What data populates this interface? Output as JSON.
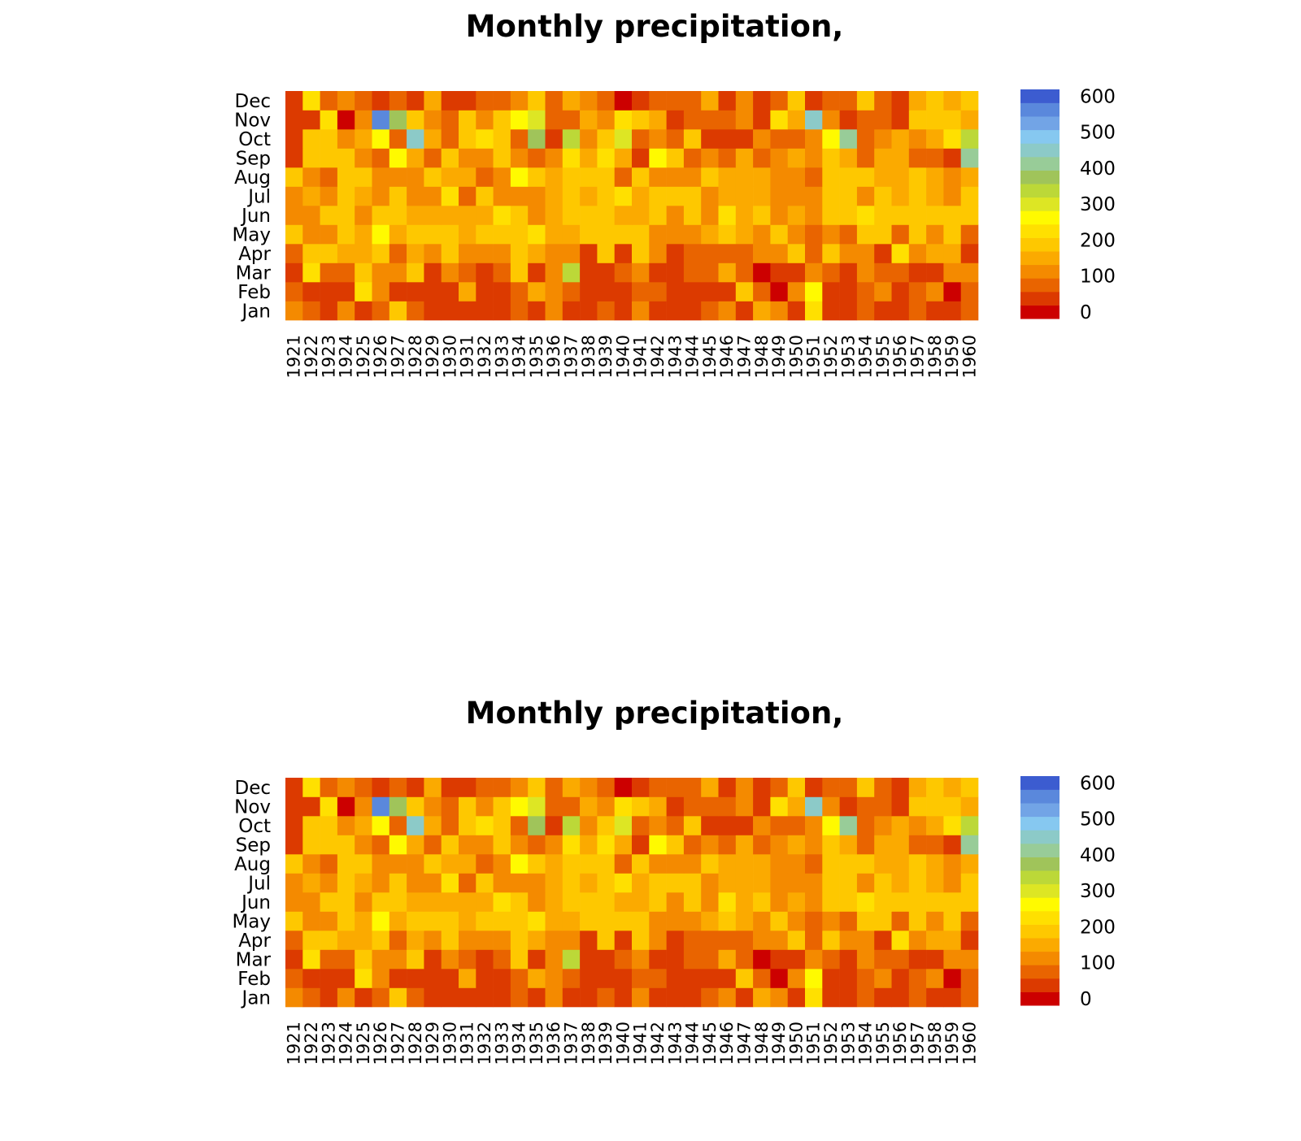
{
  "chart_data": [
    {
      "type": "heatmap",
      "title": "Monthly precipitation,",
      "xlabel": "",
      "ylabel": "",
      "legend": "right",
      "grid": false,
      "x": [
        "1921",
        "1922",
        "1923",
        "1924",
        "1925",
        "1926",
        "1927",
        "1928",
        "1929",
        "1930",
        "1931",
        "1932",
        "1933",
        "1934",
        "1935",
        "1936",
        "1937",
        "1938",
        "1939",
        "1940",
        "1941",
        "1942",
        "1943",
        "1944",
        "1945",
        "1946",
        "1947",
        "1948",
        "1949",
        "1950",
        "1951",
        "1952",
        "1953",
        "1954",
        "1955",
        "1956",
        "1957",
        "1958",
        "1959",
        "1960"
      ],
      "y": [
        "Jan",
        "Feb",
        "Mar",
        "Apr",
        "May",
        "Jun",
        "Jul",
        "Aug",
        "Sep",
        "Oct",
        "Nov",
        "Dec"
      ],
      "colorbar": {
        "ticks": [
          "0",
          "100",
          "200",
          "300",
          "400",
          "500",
          "600"
        ],
        "range": [
          0,
          600
        ]
      },
      "colors": [
        "#cc0000",
        "#dc3a00",
        "#e96400",
        "#f48a00",
        "#fbaa00",
        "#fec800",
        "#ffe000",
        "#fffa00",
        "#dde624",
        "#bcd838",
        "#a0c45a",
        "#98cc98",
        "#8ccac8",
        "#86c8f0",
        "#72a4e6",
        "#5a88dc",
        "#3c5cd0"
      ],
      "values": [
        [
          120,
          70,
          40,
          120,
          40,
          70,
          190,
          70,
          40,
          40,
          40,
          40,
          40,
          70,
          40,
          120,
          40,
          40,
          70,
          40,
          120,
          40,
          40,
          40,
          70,
          120,
          40,
          140,
          120,
          40,
          240,
          40,
          40,
          70,
          40,
          40,
          70,
          40,
          40,
          70
        ],
        [
          70,
          40,
          40,
          40,
          240,
          120,
          40,
          40,
          40,
          40,
          140,
          40,
          40,
          70,
          140,
          100,
          70,
          40,
          40,
          40,
          70,
          70,
          40,
          40,
          40,
          40,
          190,
          70,
          5,
          120,
          280,
          40,
          40,
          70,
          120,
          40,
          70,
          120,
          5,
          70
        ],
        [
          40,
          240,
          70,
          70,
          190,
          120,
          120,
          170,
          40,
          120,
          70,
          40,
          70,
          200,
          40,
          120,
          320,
          40,
          40,
          70,
          120,
          40,
          40,
          70,
          70,
          140,
          70,
          5,
          40,
          40,
          120,
          70,
          40,
          120,
          70,
          70,
          40,
          40,
          120,
          120
        ],
        [
          70,
          170,
          170,
          140,
          140,
          200,
          70,
          140,
          120,
          170,
          120,
          120,
          120,
          170,
          140,
          120,
          120,
          40,
          190,
          40,
          170,
          120,
          40,
          70,
          70,
          70,
          70,
          120,
          120,
          200,
          70,
          170,
          120,
          120,
          40,
          240,
          120,
          140,
          140,
          40
        ],
        [
          170,
          120,
          120,
          200,
          140,
          280,
          140,
          170,
          200,
          170,
          140,
          170,
          200,
          200,
          240,
          140,
          140,
          170,
          200,
          200,
          200,
          120,
          120,
          120,
          140,
          170,
          140,
          120,
          170,
          120,
          70,
          120,
          70,
          200,
          170,
          70,
          170,
          120,
          170,
          70
        ],
        [
          120,
          120,
          170,
          170,
          120,
          200,
          170,
          140,
          140,
          140,
          140,
          140,
          240,
          170,
          120,
          140,
          200,
          200,
          170,
          140,
          140,
          200,
          120,
          200,
          120,
          240,
          140,
          170,
          120,
          140,
          120,
          170,
          170,
          240,
          170,
          200,
          170,
          170,
          170,
          170
        ],
        [
          120,
          140,
          120,
          170,
          140,
          120,
          170,
          120,
          120,
          240,
          70,
          200,
          120,
          120,
          120,
          140,
          170,
          140,
          200,
          240,
          140,
          170,
          170,
          200,
          120,
          140,
          140,
          140,
          120,
          120,
          120,
          200,
          200,
          120,
          170,
          140,
          200,
          140,
          120,
          170
        ],
        [
          170,
          120,
          70,
          170,
          170,
          120,
          120,
          120,
          170,
          140,
          140,
          70,
          120,
          280,
          200,
          140,
          200,
          170,
          200,
          70,
          170,
          120,
          120,
          120,
          170,
          140,
          140,
          140,
          120,
          120,
          70,
          170,
          200,
          170,
          140,
          140,
          200,
          140,
          120,
          140
        ],
        [
          40,
          200,
          170,
          170,
          120,
          70,
          280,
          140,
          70,
          200,
          120,
          120,
          170,
          120,
          70,
          120,
          240,
          140,
          240,
          140,
          40,
          280,
          170,
          70,
          120,
          70,
          140,
          70,
          120,
          140,
          120,
          200,
          140,
          70,
          140,
          140,
          70,
          70,
          40,
          400
        ],
        [
          40,
          170,
          170,
          120,
          140,
          280,
          70,
          440,
          140,
          70,
          200,
          240,
          200,
          70,
          380,
          40,
          320,
          120,
          170,
          300,
          70,
          120,
          70,
          170,
          40,
          40,
          40,
          120,
          70,
          70,
          120,
          280,
          420,
          70,
          120,
          140,
          120,
          140,
          240,
          320
        ],
        [
          40,
          40,
          240,
          5,
          120,
          580,
          380,
          200,
          120,
          70,
          200,
          120,
          170,
          280,
          300,
          70,
          70,
          140,
          120,
          240,
          170,
          140,
          40,
          70,
          70,
          70,
          120,
          40,
          240,
          140,
          460,
          120,
          40,
          70,
          70,
          40,
          170,
          200,
          200,
          140
        ],
        [
          40,
          240,
          70,
          120,
          70,
          40,
          70,
          40,
          140,
          40,
          40,
          70,
          70,
          120,
          200,
          70,
          140,
          120,
          70,
          5,
          40,
          70,
          70,
          70,
          140,
          40,
          120,
          40,
          70,
          200,
          40,
          70,
          70,
          200,
          70,
          40,
          140,
          200,
          140,
          200
        ]
      ]
    },
    {
      "type": "heatmap",
      "title": "Monthly precipitation,",
      "xlabel": "",
      "ylabel": "",
      "legend": "right",
      "grid": false,
      "x": [
        "1921",
        "1922",
        "1923",
        "1924",
        "1925",
        "1926",
        "1927",
        "1928",
        "1929",
        "1930",
        "1931",
        "1932",
        "1933",
        "1934",
        "1935",
        "1936",
        "1937",
        "1938",
        "1939",
        "1940",
        "1941",
        "1942",
        "1943",
        "1944",
        "1945",
        "1946",
        "1947",
        "1948",
        "1949",
        "1950",
        "1951",
        "1952",
        "1953",
        "1954",
        "1955",
        "1956",
        "1957",
        "1958",
        "1959",
        "1960"
      ],
      "y": [
        "Jan",
        "Feb",
        "Mar",
        "Apr",
        "May",
        "Jun",
        "Jul",
        "Aug",
        "Sep",
        "Oct",
        "Nov",
        "Dec"
      ],
      "colorbar": {
        "ticks": [
          "0",
          "100",
          "200",
          "300",
          "400",
          "500",
          "600"
        ],
        "range": [
          0,
          600
        ]
      },
      "colors": [
        "#cc0000",
        "#dc3a00",
        "#e96400",
        "#f48a00",
        "#fbaa00",
        "#fec800",
        "#ffe000",
        "#fffa00",
        "#dde624",
        "#bcd838",
        "#a0c45a",
        "#98cc98",
        "#8ccac8",
        "#86c8f0",
        "#72a4e6",
        "#5a88dc",
        "#3c5cd0"
      ],
      "values": [
        [
          120,
          70,
          40,
          120,
          40,
          70,
          190,
          70,
          40,
          40,
          40,
          40,
          40,
          70,
          40,
          120,
          40,
          40,
          70,
          40,
          120,
          40,
          40,
          40,
          70,
          120,
          40,
          140,
          120,
          40,
          240,
          40,
          40,
          70,
          40,
          40,
          70,
          40,
          40,
          70
        ],
        [
          70,
          40,
          40,
          40,
          240,
          120,
          40,
          40,
          40,
          40,
          140,
          40,
          40,
          70,
          140,
          100,
          70,
          40,
          40,
          40,
          70,
          70,
          40,
          40,
          40,
          40,
          190,
          70,
          5,
          120,
          280,
          40,
          40,
          70,
          120,
          40,
          70,
          120,
          5,
          70
        ],
        [
          40,
          240,
          70,
          70,
          190,
          120,
          120,
          170,
          40,
          120,
          70,
          40,
          70,
          200,
          40,
          120,
          320,
          40,
          40,
          70,
          120,
          40,
          40,
          70,
          70,
          140,
          70,
          5,
          40,
          40,
          120,
          70,
          40,
          120,
          70,
          70,
          40,
          40,
          120,
          120
        ],
        [
          70,
          170,
          170,
          140,
          140,
          200,
          70,
          140,
          120,
          170,
          120,
          120,
          120,
          170,
          140,
          120,
          120,
          40,
          190,
          40,
          170,
          120,
          40,
          70,
          70,
          70,
          70,
          120,
          120,
          200,
          70,
          170,
          120,
          120,
          40,
          240,
          120,
          140,
          140,
          40
        ],
        [
          170,
          120,
          120,
          200,
          140,
          280,
          140,
          170,
          200,
          170,
          140,
          170,
          200,
          200,
          240,
          140,
          140,
          170,
          200,
          200,
          200,
          120,
          120,
          120,
          140,
          170,
          140,
          120,
          170,
          120,
          70,
          120,
          70,
          200,
          170,
          70,
          170,
          120,
          170,
          70
        ],
        [
          120,
          120,
          170,
          170,
          120,
          200,
          170,
          140,
          140,
          140,
          140,
          140,
          240,
          170,
          120,
          140,
          200,
          200,
          170,
          140,
          140,
          200,
          120,
          200,
          120,
          240,
          140,
          170,
          120,
          140,
          120,
          170,
          170,
          240,
          170,
          200,
          170,
          170,
          170,
          170
        ],
        [
          120,
          140,
          120,
          170,
          140,
          120,
          170,
          120,
          120,
          240,
          70,
          200,
          120,
          120,
          120,
          140,
          170,
          140,
          200,
          240,
          140,
          170,
          170,
          200,
          120,
          140,
          140,
          140,
          120,
          120,
          120,
          200,
          200,
          120,
          170,
          140,
          200,
          140,
          120,
          170
        ],
        [
          170,
          120,
          70,
          170,
          170,
          120,
          120,
          120,
          170,
          140,
          140,
          70,
          120,
          280,
          200,
          140,
          200,
          170,
          200,
          70,
          170,
          120,
          120,
          120,
          170,
          140,
          140,
          140,
          120,
          120,
          70,
          170,
          200,
          170,
          140,
          140,
          200,
          140,
          120,
          140
        ],
        [
          40,
          200,
          170,
          170,
          120,
          70,
          280,
          140,
          70,
          200,
          120,
          120,
          170,
          120,
          70,
          120,
          240,
          140,
          240,
          140,
          40,
          280,
          170,
          70,
          120,
          70,
          140,
          70,
          120,
          140,
          120,
          200,
          140,
          70,
          140,
          140,
          70,
          70,
          40,
          400
        ],
        [
          40,
          170,
          170,
          120,
          140,
          280,
          70,
          440,
          140,
          70,
          200,
          240,
          200,
          70,
          380,
          40,
          320,
          120,
          170,
          300,
          70,
          120,
          70,
          170,
          40,
          40,
          40,
          120,
          70,
          70,
          120,
          280,
          420,
          70,
          120,
          140,
          120,
          140,
          240,
          320
        ],
        [
          40,
          40,
          240,
          5,
          120,
          580,
          380,
          200,
          120,
          70,
          200,
          120,
          170,
          280,
          300,
          70,
          70,
          140,
          120,
          240,
          170,
          140,
          40,
          70,
          70,
          70,
          120,
          40,
          240,
          140,
          460,
          120,
          40,
          70,
          70,
          40,
          170,
          200,
          200,
          140
        ],
        [
          40,
          240,
          70,
          120,
          70,
          40,
          70,
          40,
          140,
          40,
          40,
          70,
          70,
          120,
          200,
          70,
          140,
          120,
          70,
          5,
          40,
          70,
          70,
          70,
          140,
          40,
          120,
          40,
          70,
          200,
          40,
          70,
          70,
          200,
          70,
          40,
          140,
          200,
          140,
          200
        ]
      ]
    }
  ]
}
